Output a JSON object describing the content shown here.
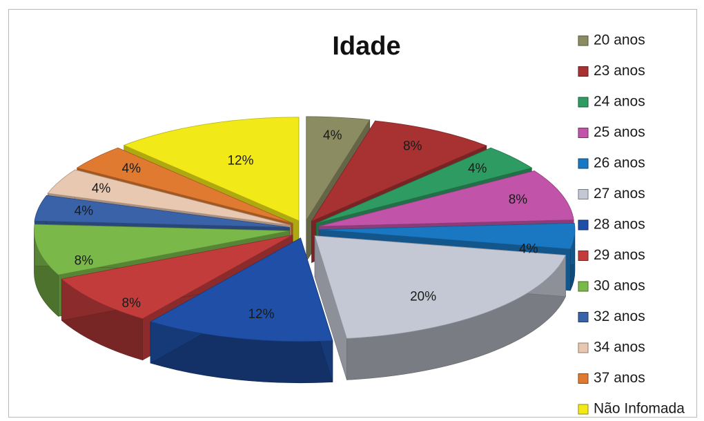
{
  "chart_data": {
    "type": "pie",
    "title": "Idade",
    "three_d": true,
    "exploded": true,
    "legend_position": "right",
    "categories": [
      "20 anos",
      "23 anos",
      "24 anos",
      "25 anos",
      "26 anos",
      "27 anos",
      "28 anos",
      "29 anos",
      "30 anos",
      "32 anos",
      "34 anos",
      "37 anos",
      "Não Infomada"
    ],
    "values": [
      4,
      8,
      4,
      8,
      4,
      20,
      12,
      8,
      8,
      4,
      4,
      4,
      12
    ],
    "value_labels": [
      "4%",
      "8%",
      "4%",
      "8%",
      "4%",
      "20%",
      "12%",
      "8%",
      "8%",
      "4%",
      "4%",
      "4%",
      "12%"
    ],
    "colors": [
      "#8c8c62",
      "#a83232",
      "#2e9c62",
      "#c153a8",
      "#1a78c2",
      "#c4c8d4",
      "#1f4fa6",
      "#c23c3c",
      "#7ab84a",
      "#3a62a8",
      "#e8c8b0",
      "#e07a30",
      "#f2ea18"
    ]
  }
}
